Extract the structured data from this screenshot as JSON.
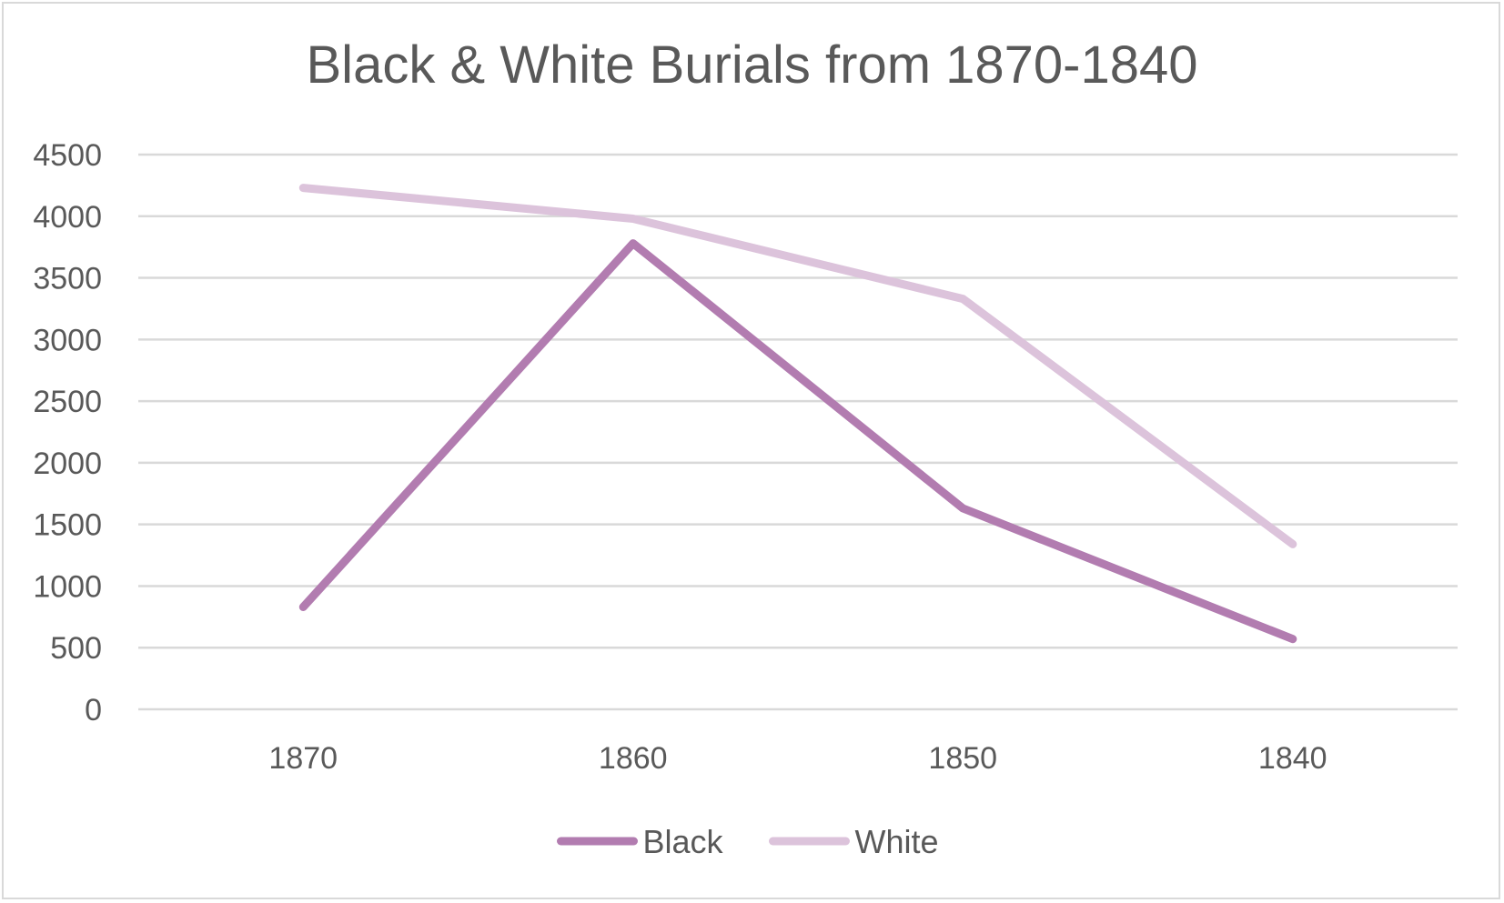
{
  "chart_data": {
    "type": "line",
    "title": "Black & White Burials from 1870-1840",
    "categories": [
      "1870",
      "1860",
      "1850",
      "1840"
    ],
    "series": [
      {
        "name": "Black",
        "values": [
          830,
          3780,
          1630,
          570
        ],
        "color": "#b27cb0"
      },
      {
        "name": "White",
        "values": [
          4230,
          3980,
          3330,
          1340
        ],
        "color": "#dcc3db"
      }
    ],
    "y_ticks": [
      "0",
      "500",
      "1000",
      "1500",
      "2000",
      "2500",
      "3000",
      "3500",
      "4000",
      "4500"
    ],
    "ylim": [
      0,
      4500
    ],
    "grid": true,
    "legend_position": "bottom",
    "gridline_color": "#d9d9d9"
  }
}
